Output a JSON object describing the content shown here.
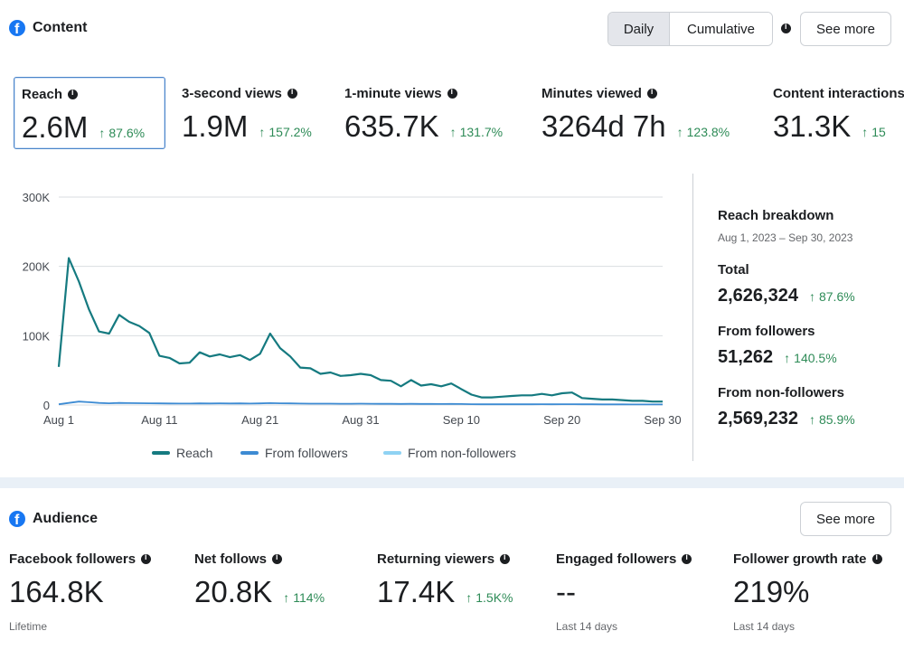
{
  "content": {
    "title": "Content",
    "toggle": {
      "daily": "Daily",
      "cumulative": "Cumulative"
    },
    "see_more": "See more",
    "metrics": [
      {
        "label": "Reach",
        "value": "2.6M",
        "delta": "87.6%"
      },
      {
        "label": "3-second views",
        "value": "1.9M",
        "delta": "157.2%"
      },
      {
        "label": "1-minute views",
        "value": "635.7K",
        "delta": "131.7%"
      },
      {
        "label": "Minutes viewed",
        "value": "3264d 7h",
        "delta": "123.8%"
      },
      {
        "label": "Content interactions",
        "value": "31.3K",
        "delta": "15"
      }
    ],
    "breakdown": {
      "title": "Reach breakdown",
      "date_range": "Aug 1, 2023 – Sep 30, 2023",
      "items": [
        {
          "label": "Total",
          "value": "2,626,324",
          "delta": "87.6%"
        },
        {
          "label": "From followers",
          "value": "51,262",
          "delta": "140.5%"
        },
        {
          "label": "From non-followers",
          "value": "2,569,232",
          "delta": "85.9%"
        }
      ]
    }
  },
  "chart_data": {
    "type": "line",
    "title": "",
    "y_ticks": [
      "300K",
      "200K",
      "100K",
      "0"
    ],
    "y_tick_values": [
      300000,
      200000,
      100000,
      0
    ],
    "ylim": [
      0,
      300000
    ],
    "x_tick_labels": [
      "Aug 1",
      "Aug 11",
      "Aug 21",
      "Aug 31",
      "Sep 10",
      "Sep 20",
      "Sep 30"
    ],
    "x_tick_days": [
      0,
      10,
      20,
      30,
      40,
      50,
      60
    ],
    "grid": true,
    "legend_position": "bottom",
    "series": [
      {
        "name": "Reach",
        "color": "#157a80",
        "values": [
          55000,
          212000,
          178000,
          138000,
          106000,
          103000,
          130000,
          120000,
          114000,
          104000,
          71000,
          68000,
          60000,
          61000,
          76000,
          70000,
          73000,
          69000,
          72000,
          65000,
          74000,
          103000,
          82000,
          70000,
          54000,
          53000,
          45000,
          47000,
          42000,
          43000,
          45000,
          43000,
          36000,
          35000,
          27000,
          36000,
          28000,
          30000,
          27000,
          31000,
          23000,
          15000,
          11000,
          11000,
          12000,
          13000,
          14000,
          14000,
          16000,
          14000,
          17000,
          18000,
          10000,
          9000,
          8000,
          8000,
          7000,
          6000,
          6000,
          5000,
          5000
        ]
      },
      {
        "name": "From followers",
        "color": "#3d8bd3",
        "values": [
          1000,
          3000,
          5000,
          4000,
          3000,
          2500,
          3000,
          2800,
          2600,
          2500,
          2300,
          2200,
          2100,
          2100,
          2300,
          2200,
          2300,
          2200,
          2300,
          2100,
          2300,
          2800,
          2500,
          2300,
          2100,
          2000,
          1900,
          1900,
          1800,
          1800,
          1900,
          1800,
          1700,
          1700,
          1600,
          1700,
          1600,
          1600,
          1500,
          1600,
          1400,
          1200,
          1100,
          1100,
          1100,
          1100,
          1100,
          1100,
          1200,
          1100,
          1200,
          1200,
          1000,
          1000,
          900,
          900,
          900,
          800,
          800,
          800,
          800
        ]
      },
      {
        "name": "From non-followers",
        "color": "#8fd2f3",
        "values": [
          54000,
          209000,
          173000,
          134000,
          103000,
          100500,
          127000,
          117200,
          111400,
          101500,
          68700,
          65800,
          57900,
          58900,
          73700,
          67800,
          70700,
          66800,
          69700,
          62900,
          71700,
          100200,
          79500,
          67700,
          51900,
          51000,
          43100,
          45100,
          40200,
          41200,
          43100,
          41200,
          34300,
          33300,
          25400,
          34300,
          26400,
          28400,
          25500,
          29400,
          21600,
          13800,
          9900,
          9900,
          10900,
          11900,
          12900,
          12900,
          14800,
          12900,
          15800,
          16800,
          9000,
          8000,
          7100,
          7100,
          6100,
          5200,
          5200,
          4200,
          4200
        ]
      }
    ]
  },
  "audience": {
    "title": "Audience",
    "see_more": "See more",
    "metrics": [
      {
        "label": "Facebook followers",
        "value": "164.8K",
        "delta": "",
        "foot": "Lifetime"
      },
      {
        "label": "Net follows",
        "value": "20.8K",
        "delta": "114%",
        "foot": ""
      },
      {
        "label": "Returning viewers",
        "value": "17.4K",
        "delta": "1.5K%",
        "foot": ""
      },
      {
        "label": "Engaged followers",
        "value": "--",
        "delta": "",
        "foot": "Last 14 days"
      },
      {
        "label": "Follower growth rate",
        "value": "219%",
        "delta": "",
        "foot": "Last 14 days"
      }
    ]
  },
  "colors": {
    "accent": "#1877f2",
    "positive": "#2e8b57",
    "selected_border": "#4a84c9"
  },
  "icons": {
    "brand": "facebook-icon",
    "info": "info-icon",
    "up": "arrow-up-icon"
  }
}
